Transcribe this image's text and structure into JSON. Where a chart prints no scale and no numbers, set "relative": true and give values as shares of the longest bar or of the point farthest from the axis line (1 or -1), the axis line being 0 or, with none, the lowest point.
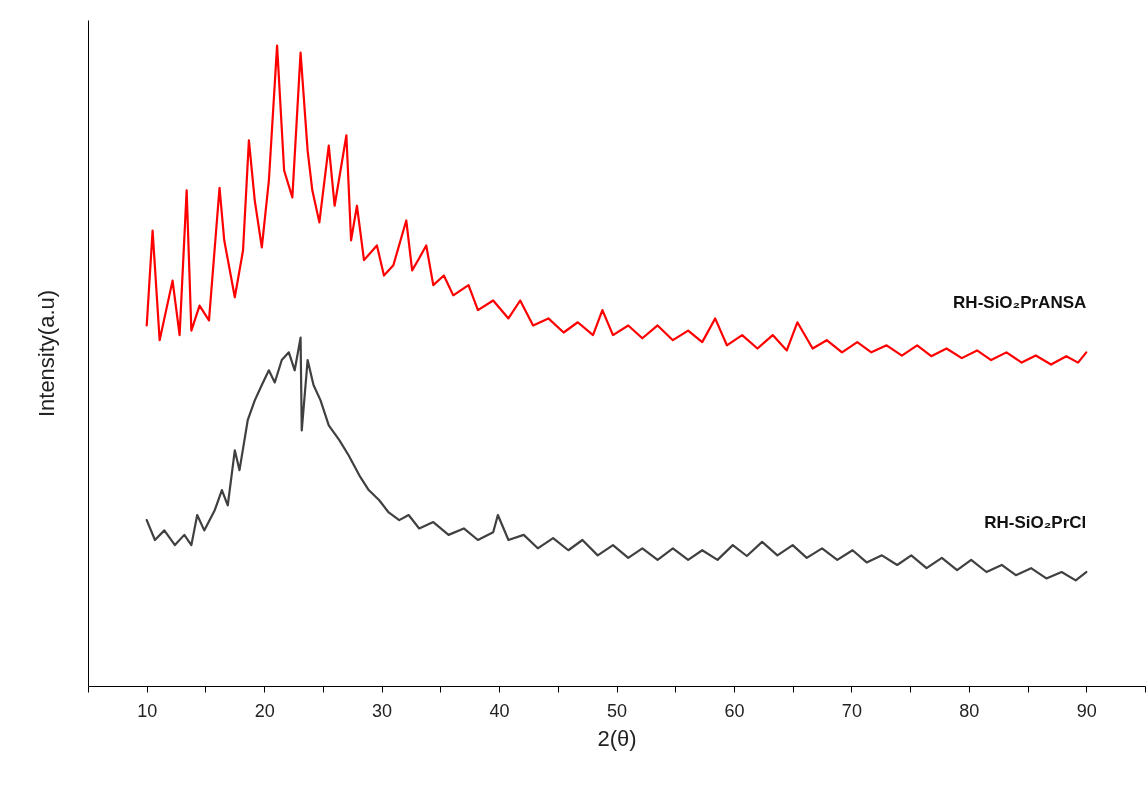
{
  "chart_data": {
    "type": "line",
    "xlabel": "2(θ)",
    "ylabel": "Intensity(a.u)",
    "relative": true,
    "tick_labels": "x",
    "grid": false,
    "marker": "none",
    "line_style": "solid",
    "xlim": [
      5,
      95
    ],
    "xticks": [
      {
        "value": 5,
        "label": null
      },
      10,
      {
        "value": 15,
        "label": null
      },
      20,
      {
        "value": 25,
        "label": null
      },
      30,
      {
        "value": 35,
        "label": null
      },
      40,
      {
        "value": 45,
        "label": null
      },
      50,
      {
        "value": 55,
        "label": null
      },
      60,
      {
        "value": 65,
        "label": null
      },
      70,
      {
        "value": 75,
        "label": null
      },
      80,
      {
        "value": 85,
        "label": null
      },
      90,
      {
        "value": 95,
        "label": null
      }
    ],
    "series": [
      {
        "name": "RH-SiO₂PrANSA",
        "color": "#ff0000",
        "x": [
          10.0,
          10.5,
          11.1,
          12.2,
          12.8,
          13.4,
          13.8,
          14.5,
          15.3,
          16.2,
          16.6,
          17.5,
          18.2,
          18.7,
          19.2,
          19.8,
          20.4,
          21.1,
          21.7,
          22.4,
          23.1,
          23.7,
          24.1,
          24.7,
          25.5,
          26.0,
          27.0,
          27.4,
          27.9,
          28.5,
          29.6,
          30.2,
          31.0,
          32.1,
          32.6,
          33.2,
          33.8,
          34.4,
          35.3,
          36.1,
          37.4,
          38.2,
          39.5,
          40.8,
          41.8,
          42.9,
          44.2,
          45.5,
          46.7,
          48.0,
          48.8,
          49.7,
          51.0,
          52.2,
          53.5,
          54.8,
          56.1,
          57.3,
          58.4,
          59.4,
          60.7,
          62.0,
          63.3,
          64.5,
          65.4,
          66.7,
          67.9,
          69.2,
          70.5,
          71.7,
          73.0,
          74.3,
          75.6,
          76.8,
          78.1,
          79.4,
          80.7,
          81.9,
          83.2,
          84.5,
          85.7,
          87.0,
          88.3,
          89.3,
          90.0
        ],
        "values": [
          0.563,
          0.711,
          0.54,
          0.633,
          0.548,
          0.774,
          0.555,
          0.594,
          0.571,
          0.778,
          0.696,
          0.607,
          0.68,
          0.852,
          0.758,
          0.685,
          0.789,
          1.0,
          0.805,
          0.763,
          0.989,
          0.836,
          0.774,
          0.724,
          0.844,
          0.75,
          0.86,
          0.696,
          0.75,
          0.665,
          0.688,
          0.641,
          0.657,
          0.727,
          0.649,
          0.668,
          0.688,
          0.626,
          0.641,
          0.61,
          0.626,
          0.587,
          0.602,
          0.574,
          0.602,
          0.563,
          0.574,
          0.552,
          0.568,
          0.548,
          0.587,
          0.548,
          0.563,
          0.543,
          0.563,
          0.54,
          0.555,
          0.537,
          0.574,
          0.532,
          0.548,
          0.527,
          0.548,
          0.524,
          0.568,
          0.527,
          0.54,
          0.521,
          0.537,
          0.521,
          0.532,
          0.516,
          0.532,
          0.515,
          0.527,
          0.512,
          0.524,
          0.509,
          0.521,
          0.505,
          0.516,
          0.502,
          0.515,
          0.505,
          0.521
        ]
      },
      {
        "name": "RH-SiO₂PrCl",
        "color": "#404040",
        "x": [
          10.0,
          10.7,
          11.5,
          12.4,
          13.2,
          13.8,
          14.3,
          14.9,
          15.8,
          16.4,
          16.9,
          17.5,
          17.9,
          18.6,
          19.2,
          19.8,
          20.4,
          20.9,
          21.5,
          22.1,
          22.6,
          23.1,
          23.2,
          23.7,
          24.2,
          24.8,
          25.5,
          26.4,
          27.2,
          28.1,
          28.9,
          29.8,
          30.6,
          31.5,
          32.3,
          33.2,
          34.4,
          35.7,
          37.0,
          38.2,
          39.5,
          39.9,
          40.8,
          42.1,
          43.3,
          44.6,
          45.9,
          47.1,
          48.4,
          49.7,
          51.0,
          52.2,
          53.5,
          54.8,
          56.1,
          57.3,
          58.6,
          59.9,
          61.1,
          62.4,
          63.7,
          65.0,
          66.2,
          67.5,
          68.8,
          70.1,
          71.3,
          72.6,
          73.9,
          75.1,
          76.4,
          77.7,
          79.0,
          80.2,
          81.5,
          82.8,
          84.0,
          85.3,
          86.6,
          87.9,
          89.1,
          90.0
        ],
        "values": [
          0.259,
          0.228,
          0.243,
          0.22,
          0.236,
          0.22,
          0.267,
          0.243,
          0.275,
          0.306,
          0.282,
          0.368,
          0.337,
          0.415,
          0.446,
          0.47,
          0.493,
          0.474,
          0.509,
          0.521,
          0.493,
          0.544,
          0.399,
          0.509,
          0.47,
          0.446,
          0.407,
          0.384,
          0.36,
          0.329,
          0.306,
          0.29,
          0.271,
          0.259,
          0.267,
          0.246,
          0.256,
          0.236,
          0.246,
          0.228,
          0.24,
          0.267,
          0.228,
          0.236,
          0.215,
          0.231,
          0.212,
          0.228,
          0.204,
          0.22,
          0.2,
          0.215,
          0.197,
          0.215,
          0.197,
          0.212,
          0.197,
          0.22,
          0.203,
          0.225,
          0.204,
          0.22,
          0.2,
          0.215,
          0.197,
          0.212,
          0.193,
          0.204,
          0.189,
          0.204,
          0.184,
          0.2,
          0.181,
          0.197,
          0.178,
          0.189,
          0.173,
          0.184,
          0.168,
          0.178,
          0.165,
          0.178
        ]
      }
    ]
  }
}
